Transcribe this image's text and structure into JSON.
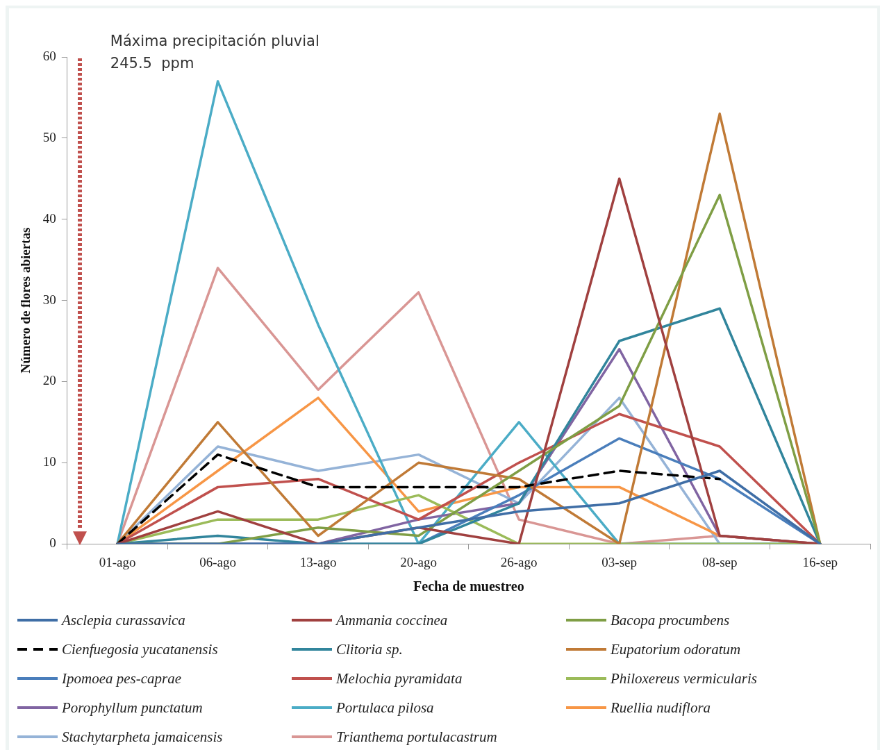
{
  "chart_data": {
    "type": "line",
    "xlabel": "Fecha de muestreo",
    "ylabel": "Número de flores abiertas",
    "categories": [
      "01-ago",
      "06-ago",
      "13-ago",
      "20-ago",
      "26-ago",
      "03-sep",
      "08-sep",
      "16-sep"
    ],
    "ylim": [
      0,
      60
    ],
    "yticks": [
      0,
      10,
      20,
      30,
      40,
      50,
      60
    ],
    "grid": false,
    "legend": "bottom",
    "marker": "none",
    "annotations": [
      "Máxima precipitación pluvial\n245.5  ppm"
    ],
    "series": [
      {
        "name": "Asclepia curassavica",
        "color": "#3f6ea6",
        "values": [
          0,
          0,
          0,
          2,
          4,
          5,
          9,
          0
        ]
      },
      {
        "name": "Ammania coccinea",
        "color": "#a0403f",
        "values": [
          0,
          4,
          0,
          2,
          0,
          45,
          1,
          0
        ]
      },
      {
        "name": "Bacopa procumbens",
        "color": "#7f9e45",
        "values": [
          0,
          0,
          2,
          1,
          9,
          17,
          43,
          0
        ]
      },
      {
        "name": "Cienfuegosia yucatanensis",
        "color": "#000000",
        "line_style": "dashed",
        "values": [
          0,
          11,
          7,
          7,
          7,
          9,
          8,
          null
        ]
      },
      {
        "name": "Clitoria sp.",
        "color": "#31859c",
        "values": [
          0,
          1,
          0,
          0,
          5,
          25,
          29,
          0
        ]
      },
      {
        "name": "Eupatorium odoratum",
        "color": "#c07a36",
        "values": [
          0,
          15,
          1,
          10,
          8,
          0,
          53,
          0
        ]
      },
      {
        "name": "Ipomoea pes-caprae",
        "color": "#4a7ebb",
        "values": [
          0,
          0,
          0,
          0,
          6,
          13,
          8,
          0
        ]
      },
      {
        "name": "Melochia pyramidata",
        "color": "#c0504d",
        "values": [
          0,
          7,
          8,
          3,
          10,
          16,
          12,
          0
        ]
      },
      {
        "name": "Philoxereus vermicularis",
        "color": "#9bbb59",
        "values": [
          0,
          3,
          3,
          6,
          0,
          0,
          0,
          0
        ]
      },
      {
        "name": "Porophyllum punctatum",
        "color": "#8064a2",
        "values": [
          0,
          0,
          0,
          3,
          5,
          24,
          1,
          0
        ]
      },
      {
        "name": "Portulaca pilosa",
        "color": "#4bacc6",
        "values": [
          0,
          57,
          27,
          0,
          15,
          0,
          0,
          0
        ]
      },
      {
        "name": "Ruellia nudiflora",
        "color": "#f79646",
        "values": [
          0,
          9,
          18,
          4,
          7,
          7,
          1,
          0
        ]
      },
      {
        "name": "Stachytarpheta jamaicensis",
        "color": "#95b3d7",
        "values": [
          0,
          12,
          9,
          11,
          5,
          18,
          0,
          0
        ]
      },
      {
        "name": "Trianthema portulacastrum",
        "color": "#d99694",
        "values": [
          0,
          34,
          19,
          31,
          3,
          0,
          1,
          0
        ]
      }
    ]
  }
}
